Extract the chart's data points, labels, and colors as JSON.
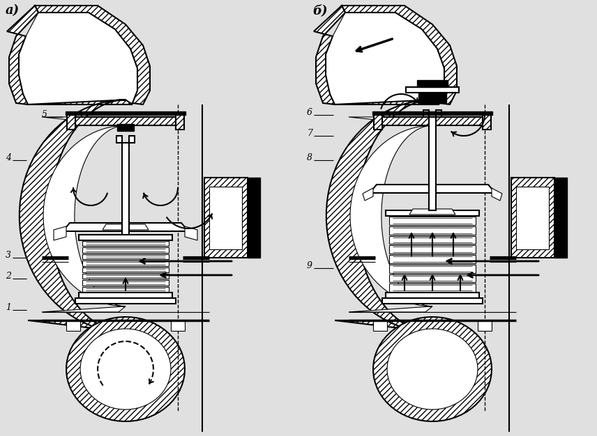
{
  "bg_color": "#e0e0e0",
  "label_a": "а)",
  "label_b": "б)",
  "fig_width": 8.56,
  "fig_height": 6.26,
  "dpi": 100,
  "lw_main": 1.5,
  "lw_thick": 2.5,
  "lw_thin": 0.8
}
